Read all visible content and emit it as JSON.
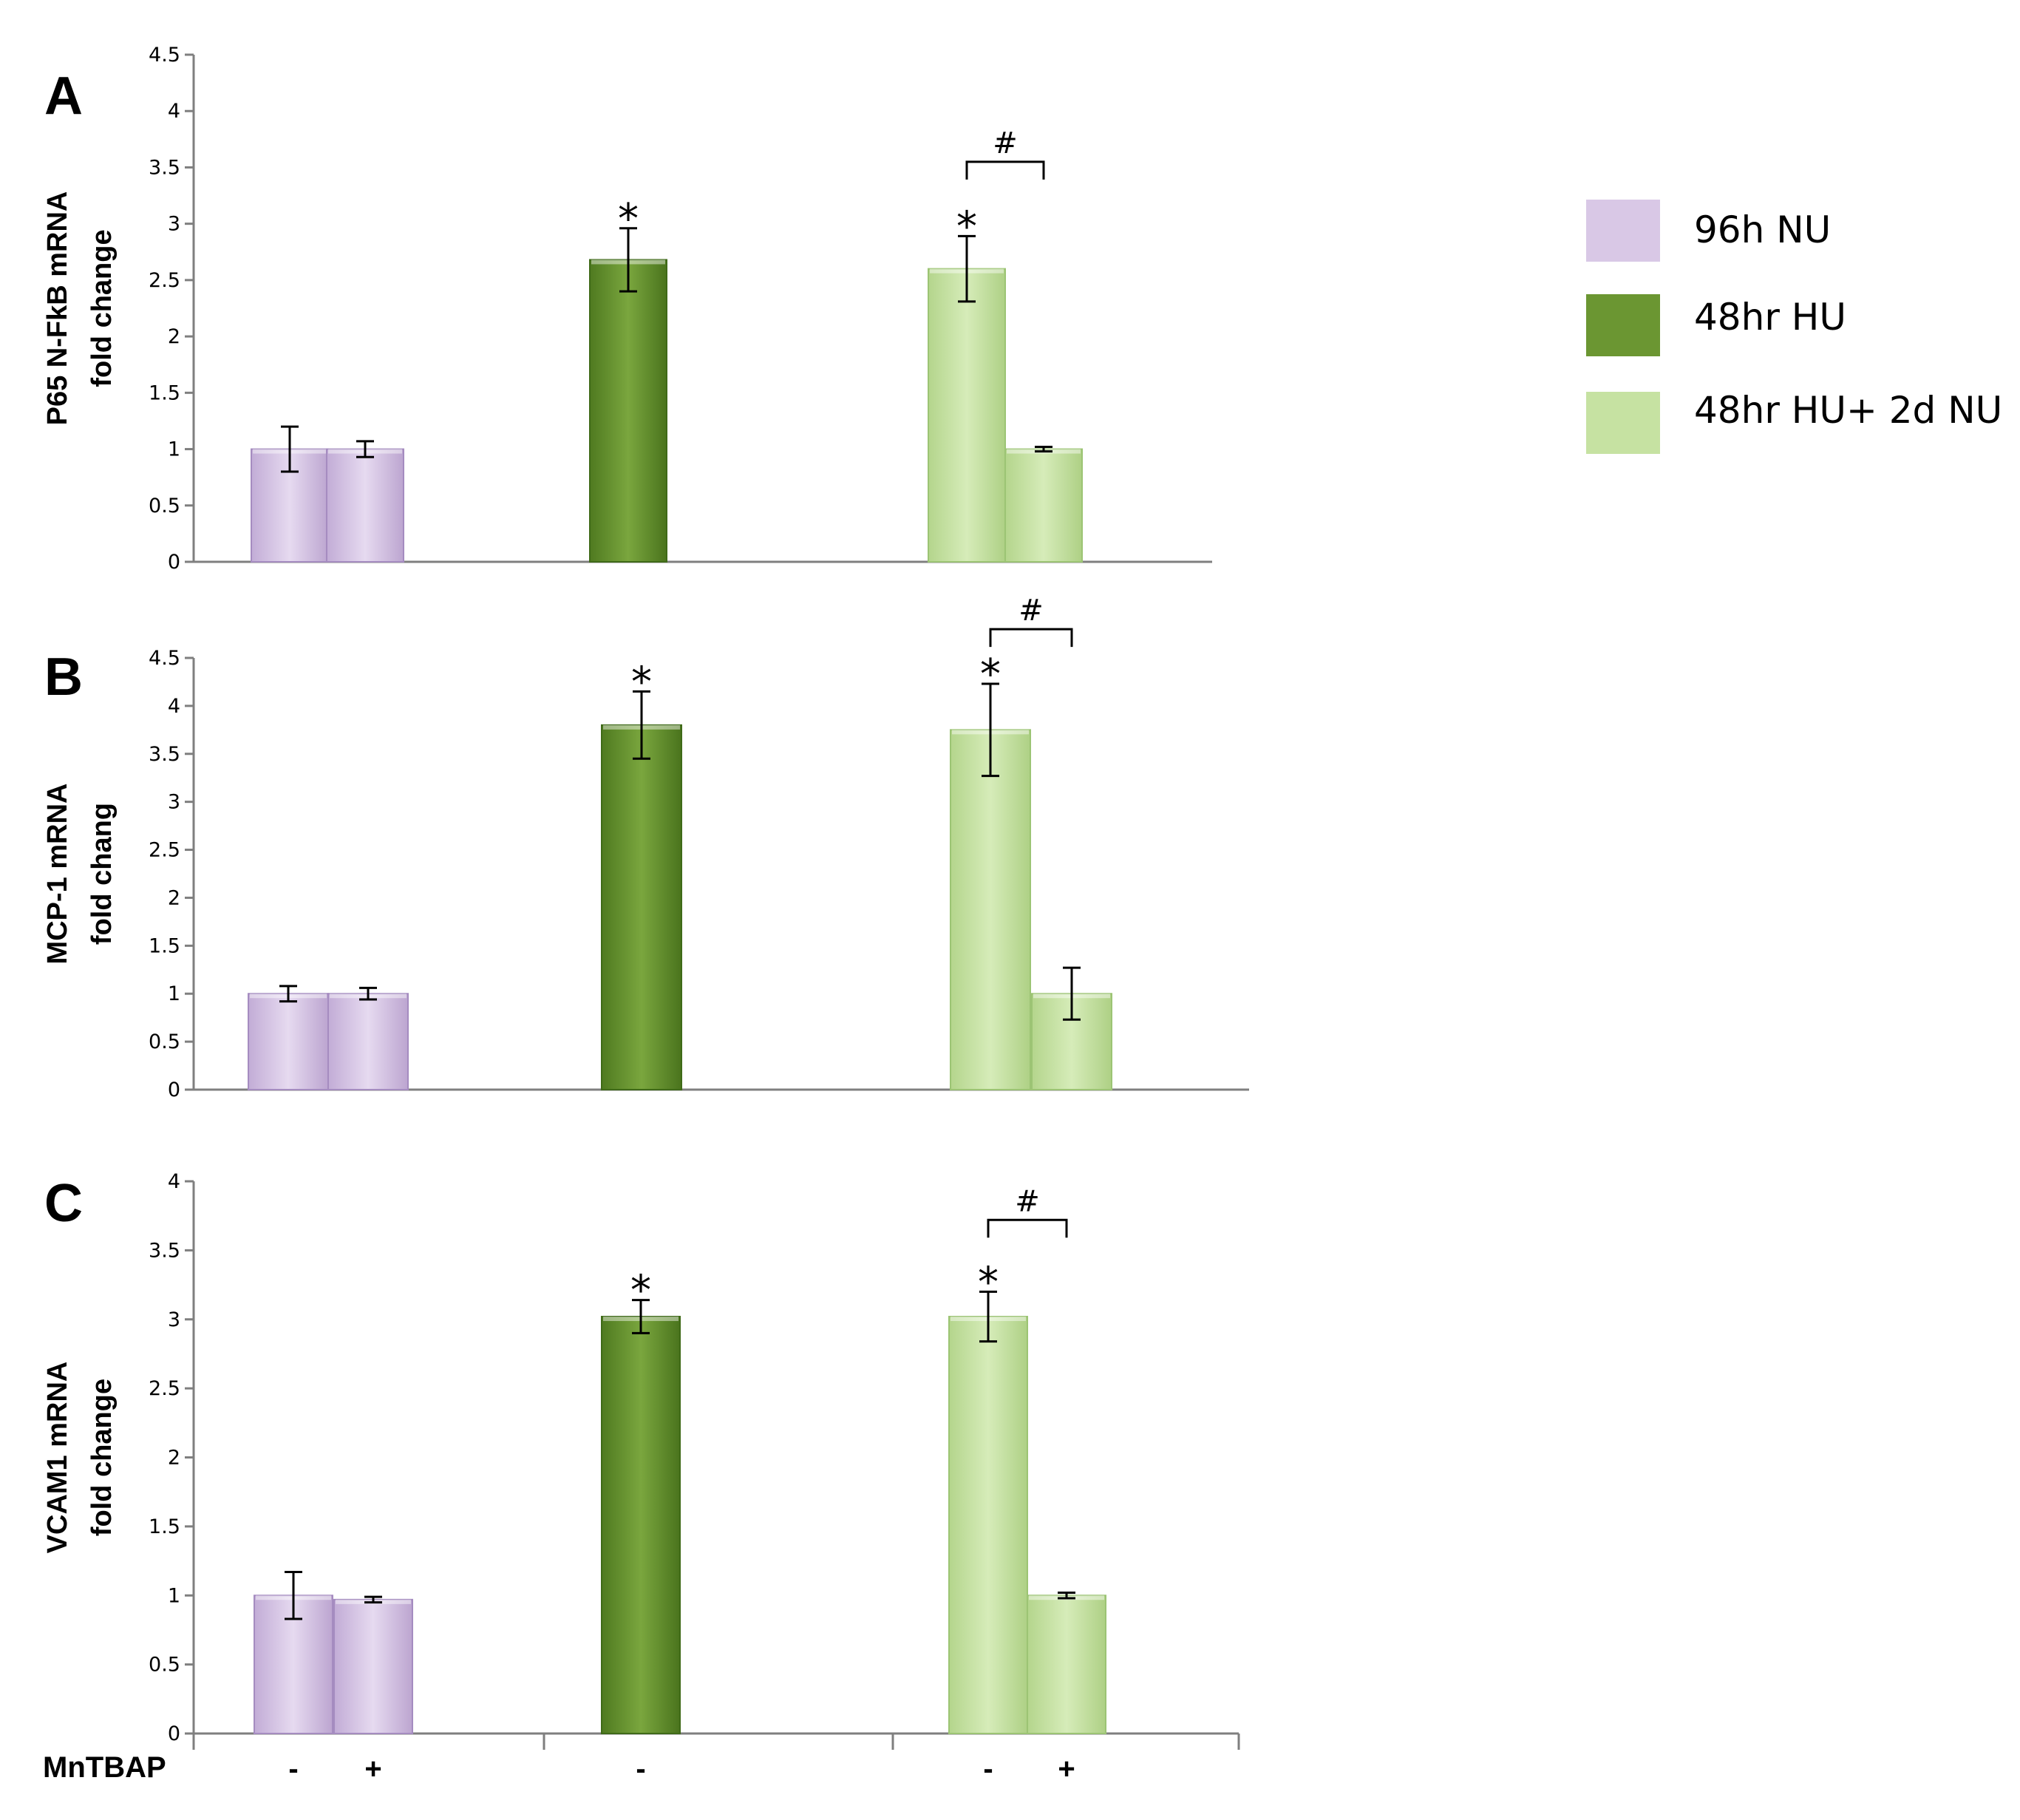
{
  "legend": [
    {
      "label": "96h NU",
      "color": "#d9c8e6"
    },
    {
      "label": "48hr HU",
      "color": "#6b9632"
    },
    {
      "label": "48hr HU+ 2d NU",
      "color": "#c6e2a2"
    }
  ],
  "x_axis": {
    "row_label": "MnTBAP",
    "tick_labels": [
      "-",
      "+",
      "-",
      "-",
      "+"
    ]
  },
  "chart_data": [
    {
      "type": "bar",
      "panel_label": "A",
      "ylabel_line1": "P65 N-FkB mRNA",
      "ylabel_line2": "fold change",
      "ylim": [
        0,
        4.5
      ],
      "yticks": [
        "0",
        "0.5",
        "1",
        "1.5",
        "2",
        "2.5",
        "3",
        "3.5",
        "4",
        "4.5"
      ],
      "categories": [
        "96h NU -",
        "96h NU +",
        "48hr HU -",
        "48hr HU+ 2d NU -",
        "48hr HU+ 2d NU +"
      ],
      "values": [
        1.0,
        1.0,
        2.68,
        2.6,
        1.0
      ],
      "errors": [
        0.2,
        0.07,
        0.28,
        0.29,
        0.02
      ],
      "groups": [
        0,
        0,
        1,
        2,
        2
      ],
      "asterisk": "*",
      "asterisk_bars": [
        2,
        3
      ],
      "hash": "#",
      "hash_bars": [
        3,
        4
      ],
      "hash_y": 3.55
    },
    {
      "type": "bar",
      "panel_label": "B",
      "ylabel_line1": "MCP-1 mRNA",
      "ylabel_line2": "fold  chang",
      "ylim": [
        0,
        4.5
      ],
      "yticks": [
        "0",
        "0.5",
        "1",
        "1.5",
        "2",
        "2.5",
        "3",
        "3.5",
        "4",
        "4.5"
      ],
      "categories": [
        "96h NU -",
        "96h NU +",
        "48hr HU -",
        "48hr HU+ 2d NU -",
        "48hr HU+ 2d NU +"
      ],
      "values": [
        1.0,
        1.0,
        3.8,
        3.75,
        1.0
      ],
      "errors": [
        0.08,
        0.06,
        0.35,
        0.48,
        0.27
      ],
      "groups": [
        0,
        0,
        1,
        2,
        2
      ],
      "asterisk": "*",
      "asterisk_bars": [
        2,
        3
      ],
      "hash": "#",
      "hash_bars": [
        3,
        4
      ],
      "hash_y": 4.8
    },
    {
      "type": "bar",
      "panel_label": "C",
      "ylabel_line1": "VCAM1 mRNA",
      "ylabel_line2": "fold change",
      "ylim": [
        0,
        4
      ],
      "yticks": [
        "0",
        "0.5",
        "1",
        "1.5",
        "2",
        "2.5",
        "3",
        "3.5",
        "4"
      ],
      "categories": [
        "96h NU -",
        "96h NU +",
        "48hr HU -",
        "48hr HU+ 2d NU -",
        "48hr HU+ 2d NU +"
      ],
      "values": [
        1.0,
        0.97,
        3.02,
        3.02,
        1.0
      ],
      "errors": [
        0.17,
        0.02,
        0.12,
        0.18,
        0.02
      ],
      "groups": [
        0,
        0,
        1,
        2,
        2
      ],
      "asterisk": "*",
      "asterisk_bars": [
        2,
        3
      ],
      "hash": "#",
      "hash_bars": [
        3,
        4
      ],
      "hash_y": 3.72
    }
  ]
}
